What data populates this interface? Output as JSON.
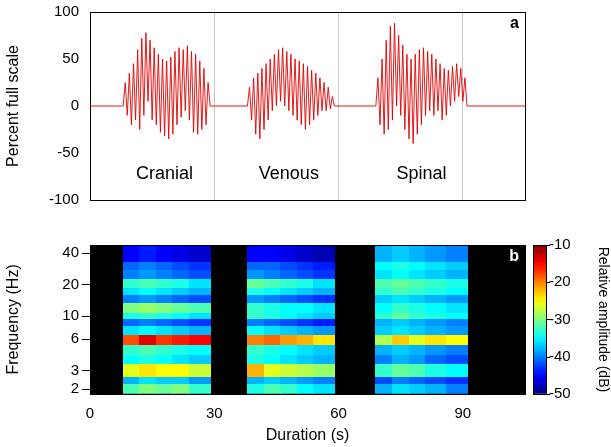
{
  "chart_data": [
    {
      "type": "line",
      "panel": "a",
      "ylabel": "Percent full scale",
      "x": [
        0,
        8,
        8.5,
        9,
        9.5,
        10,
        10.5,
        11,
        11.5,
        12,
        12.5,
        13,
        13.5,
        14,
        14.5,
        15,
        15.5,
        16,
        16.5,
        17,
        17.5,
        18,
        18.5,
        19,
        19.5,
        20,
        20.5,
        21,
        21.5,
        22,
        22.5,
        23,
        23.5,
        24,
        24.5,
        25,
        25.5,
        26,
        26.5,
        27,
        27.5,
        28,
        28.5,
        29,
        38,
        38.5,
        39,
        39.5,
        40,
        40.5,
        41,
        41.5,
        42,
        42.5,
        43,
        43.5,
        44,
        44.5,
        45,
        45.5,
        46,
        46.5,
        47,
        47.5,
        48,
        48.5,
        49,
        49.5,
        50,
        50.5,
        51,
        51.5,
        52,
        52.5,
        53,
        53.5,
        54,
        54.5,
        55,
        55.5,
        56,
        56.5,
        57,
        57.5,
        58,
        58.5,
        59,
        69,
        69.5,
        70,
        70.5,
        71,
        71.5,
        72,
        72.5,
        73,
        73.5,
        74,
        74.5,
        75,
        75.5,
        76,
        76.5,
        77,
        77.5,
        78,
        78.5,
        79,
        79.5,
        80,
        80.5,
        81,
        81.5,
        82,
        82.5,
        83,
        83.5,
        84,
        84.5,
        85,
        85.5,
        86,
        86.5,
        87,
        87.5,
        88,
        88.5,
        89,
        89.5,
        90,
        90.5,
        91,
        105
      ],
      "values": [
        0,
        0,
        25,
        -10,
        35,
        -20,
        45,
        -15,
        60,
        -25,
        72,
        -10,
        78,
        5,
        70,
        -15,
        62,
        -20,
        55,
        -28,
        50,
        -32,
        48,
        -35,
        52,
        -30,
        58,
        -20,
        62,
        -12,
        60,
        -5,
        64,
        -15,
        58,
        -28,
        55,
        -30,
        48,
        -25,
        40,
        -20,
        25,
        0,
        0,
        20,
        -15,
        30,
        -30,
        35,
        -35,
        40,
        -25,
        45,
        -15,
        50,
        -5,
        55,
        0,
        60,
        5,
        62,
        0,
        58,
        -5,
        55,
        -10,
        50,
        -15,
        48,
        -20,
        45,
        -25,
        42,
        -20,
        38,
        -15,
        35,
        -10,
        30,
        -5,
        25,
        -5,
        20,
        -3,
        10,
        0,
        0,
        30,
        -20,
        50,
        -30,
        70,
        -25,
        85,
        -15,
        88,
        0,
        75,
        -10,
        65,
        -25,
        55,
        -35,
        50,
        -40,
        55,
        -30,
        60,
        -20,
        62,
        -10,
        58,
        -5,
        55,
        -10,
        50,
        -5,
        45,
        -15,
        40,
        -10,
        38,
        0,
        42,
        5,
        45,
        10,
        40,
        5,
        30,
        0,
        0
      ],
      "color": "#e00000",
      "xlim": [
        0,
        105
      ],
      "xticks": [
        0,
        30,
        60,
        90
      ],
      "ylim": [
        -100,
        100
      ],
      "yticks": [
        -100,
        -50,
        0,
        50,
        100
      ],
      "grid": true,
      "tick_labels": "y",
      "annotations": [
        {
          "text": "Cranial",
          "x": 18,
          "y": -72
        },
        {
          "text": "Venous",
          "x": 48,
          "y": -72
        },
        {
          "text": "Spinal",
          "x": 80,
          "y": -72
        }
      ]
    },
    {
      "type": "heatmap",
      "panel": "b",
      "xlabel": "Duration (s)",
      "ylabel": "Frequency (Hz)",
      "xlim": [
        0,
        105
      ],
      "xticks": [
        0,
        30,
        60,
        90
      ],
      "ylim": [
        1.8,
        48
      ],
      "yticks": [
        2,
        3,
        6,
        10,
        20,
        40
      ],
      "log": "y",
      "grid": false,
      "x_edges": [
        0,
        8,
        12,
        16,
        20,
        24,
        29,
        38,
        42,
        46,
        50,
        54,
        59,
        69,
        73,
        77,
        81,
        86,
        91,
        105
      ],
      "y_edges": [
        1.8,
        2.3,
        2.7,
        3.6,
        4.4,
        5.4,
        6.8,
        8.3,
        9.5,
        11,
        13.5,
        16,
        19,
        23,
        28,
        34,
        48
      ],
      "cells": [
        [
          null,
          -32,
          -30,
          -31,
          -30,
          -33,
          null,
          -34,
          -32,
          -33,
          -35,
          -36,
          null,
          -38,
          -36,
          -37,
          -38,
          -40,
          null
        ],
        [
          null,
          -38,
          -36,
          -37,
          -37,
          -39,
          null,
          -38,
          -37,
          -38,
          -39,
          -40,
          null,
          -42,
          -40,
          -41,
          -42,
          -43,
          null
        ],
        [
          null,
          -26,
          -24,
          -25,
          -25,
          -27,
          null,
          -22,
          -26,
          -27,
          -28,
          -29,
          null,
          -33,
          -31,
          -32,
          -34,
          -35,
          null
        ],
        [
          null,
          -35,
          -34,
          -35,
          -36,
          -37,
          null,
          -34,
          -35,
          -36,
          -37,
          -38,
          null,
          -40,
          -38,
          -39,
          -41,
          -42,
          null
        ],
        [
          null,
          -33,
          -32,
          -33,
          -34,
          -35,
          null,
          -33,
          -34,
          -35,
          -36,
          -37,
          null,
          -38,
          -37,
          -38,
          -39,
          -40,
          null
        ],
        [
          null,
          -18,
          -14,
          -17,
          -16,
          -15,
          null,
          -20,
          -19,
          -21,
          -22,
          -24,
          null,
          -28,
          -23,
          -26,
          -24,
          -25,
          null
        ],
        [
          null,
          -36,
          -35,
          -36,
          -37,
          -38,
          null,
          -35,
          -36,
          -37,
          -38,
          -39,
          null,
          -37,
          -36,
          -37,
          -38,
          -39,
          null
        ],
        [
          null,
          -41,
          -40,
          -41,
          -42,
          -43,
          null,
          -40,
          -41,
          -42,
          -43,
          -44,
          null,
          -38,
          -37,
          -38,
          -39,
          -40,
          null
        ],
        [
          null,
          -34,
          -33,
          -34,
          -35,
          -36,
          null,
          -33,
          -34,
          -35,
          -36,
          -37,
          null,
          -33,
          -31,
          -33,
          -34,
          -35,
          null
        ],
        [
          null,
          -30,
          -29,
          -30,
          -31,
          -32,
          null,
          -33,
          -34,
          -35,
          -35,
          -36,
          null,
          -35,
          -33,
          -34,
          -35,
          -36,
          null
        ],
        [
          null,
          -40,
          -39,
          -40,
          -41,
          -42,
          null,
          -39,
          -40,
          -41,
          -42,
          -43,
          null,
          -37,
          -36,
          -37,
          -38,
          -39,
          null
        ],
        [
          null,
          -36,
          -35,
          -36,
          -37,
          -38,
          null,
          -34,
          -35,
          -36,
          -37,
          -38,
          null,
          -33,
          -32,
          -33,
          -34,
          -35,
          null
        ],
        [
          null,
          -33,
          -32,
          -33,
          -34,
          -36,
          null,
          -31,
          -32,
          -33,
          -34,
          -36,
          null,
          -32,
          -31,
          -32,
          -33,
          -34,
          null
        ],
        [
          null,
          -40,
          -39,
          -40,
          -41,
          -42,
          null,
          -39,
          -40,
          -41,
          -42,
          -43,
          null,
          -36,
          -35,
          -36,
          -37,
          -38,
          null
        ],
        [
          null,
          -41,
          -40,
          -41,
          -42,
          -43,
          null,
          -41,
          -41,
          -42,
          -43,
          -44,
          null,
          -35,
          -34,
          -35,
          -36,
          -37,
          null
        ],
        [
          null,
          -45,
          -44,
          -45,
          -46,
          -47,
          null,
          -45,
          -45,
          -46,
          -47,
          -48,
          null,
          -38,
          -37,
          -38,
          -39,
          -40,
          null
        ]
      ],
      "colorbar": {
        "label": "Relative amplitude (dB)",
        "range": [
          -50,
          -10
        ],
        "ticks": [
          -10,
          -20,
          -30,
          -40,
          -50
        ]
      }
    }
  ]
}
